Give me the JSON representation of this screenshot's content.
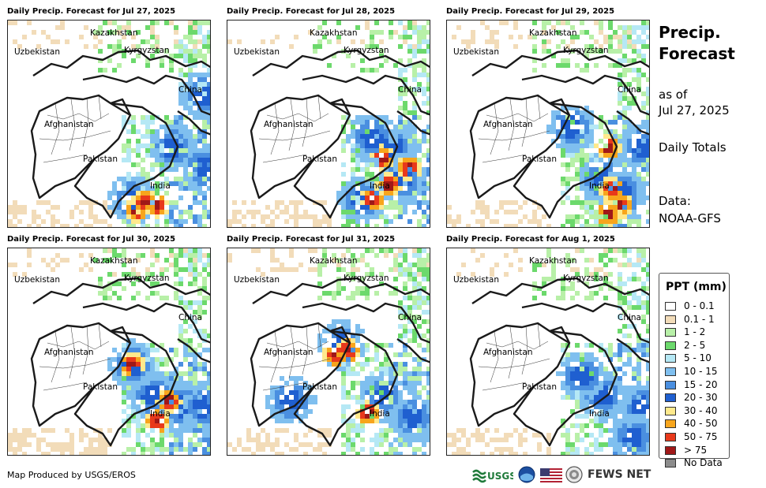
{
  "panels": [
    {
      "title": "Daily Precip. Forecast for Jul 27, 2025",
      "heavy": [
        [
          0.62,
          0.9
        ],
        [
          0.66,
          0.86
        ],
        [
          0.72,
          0.88
        ]
      ],
      "blue": [
        [
          0.8,
          0.6
        ],
        [
          0.95,
          0.7
        ],
        [
          0.95,
          0.35
        ],
        [
          0.6,
          0.85
        ]
      ]
    },
    {
      "title": "Daily Precip. Forecast for Jul 28, 2025",
      "heavy": [
        [
          0.75,
          0.65
        ],
        [
          0.88,
          0.7
        ],
        [
          0.7,
          0.85
        ],
        [
          0.78,
          0.78
        ]
      ],
      "blue": [
        [
          0.8,
          0.6
        ],
        [
          0.85,
          0.75
        ],
        [
          0.7,
          0.55
        ],
        [
          0.65,
          0.85
        ]
      ]
    },
    {
      "title": "Daily Precip. Forecast for Jul 29, 2025",
      "heavy": [
        [
          0.8,
          0.8
        ],
        [
          0.84,
          0.88
        ],
        [
          0.78,
          0.92
        ],
        [
          0.78,
          0.6
        ]
      ],
      "blue": [
        [
          0.75,
          0.75
        ],
        [
          0.85,
          0.82
        ],
        [
          0.6,
          0.5
        ],
        [
          0.95,
          0.6
        ]
      ]
    },
    {
      "title": "Daily Precip. Forecast for Jul 30, 2025",
      "heavy": [
        [
          0.78,
          0.72
        ],
        [
          0.72,
          0.82
        ],
        [
          0.6,
          0.55
        ]
      ],
      "blue": [
        [
          0.7,
          0.7
        ],
        [
          0.85,
          0.75
        ],
        [
          0.6,
          0.55
        ],
        [
          0.95,
          0.75
        ]
      ]
    },
    {
      "title": "Daily Precip. Forecast for Jul 31, 2025",
      "heavy": [
        [
          0.52,
          0.5
        ],
        [
          0.58,
          0.48
        ],
        [
          0.68,
          0.78
        ]
      ],
      "blue": [
        [
          0.55,
          0.45
        ],
        [
          0.75,
          0.7
        ],
        [
          0.9,
          0.8
        ],
        [
          0.3,
          0.72
        ]
      ]
    },
    {
      "title": "Daily Precip. Forecast for Aug 1, 2025",
      "heavy": [],
      "blue": [
        [
          0.75,
          0.7
        ],
        [
          0.95,
          0.75
        ],
        [
          0.65,
          0.6
        ],
        [
          0.9,
          0.9
        ]
      ]
    }
  ],
  "map_labels": {
    "kazakhstan": "Kazakhstan",
    "uzbekistan": "Uzbekistan",
    "kyrgyzstan": "Kyrgyzstan",
    "china": "China",
    "afghanistan": "Afghanistan",
    "pakistan": "Pakistan",
    "india": "India"
  },
  "side": {
    "title_line1": "Precip.",
    "title_line2": "Forecast",
    "asof_line1": "as of",
    "asof_line2": "Jul 27, 2025",
    "totals": "Daily Totals",
    "data_label": "Data:",
    "data_source": "NOAA-GFS"
  },
  "legend": {
    "title": "PPT (mm)",
    "items": [
      {
        "label": "0 - 0.1",
        "color": "#ffffff"
      },
      {
        "label": "0.1 - 1",
        "color": "#f2dcb9"
      },
      {
        "label": "1 - 2",
        "color": "#b8f0a8"
      },
      {
        "label": "2 - 5",
        "color": "#6cd96c"
      },
      {
        "label": "5 - 10",
        "color": "#b5e8f5"
      },
      {
        "label": "10 - 15",
        "color": "#7fbfef"
      },
      {
        "label": "15 - 20",
        "color": "#4a8fe0"
      },
      {
        "label": "20 - 30",
        "color": "#1f5fd0"
      },
      {
        "label": "30 - 40",
        "color": "#ffe98c"
      },
      {
        "label": "40 - 50",
        "color": "#f7a51c"
      },
      {
        "label": "50 - 75",
        "color": "#e8391b"
      },
      {
        "label": "> 75",
        "color": "#a01818"
      },
      {
        "label": "No Data",
        "color": "#8c8c8c"
      }
    ]
  },
  "footer": {
    "credit": "Map Produced by USGS/EROS",
    "usgs": "USGS",
    "fewsnet": "FEWS NET"
  }
}
